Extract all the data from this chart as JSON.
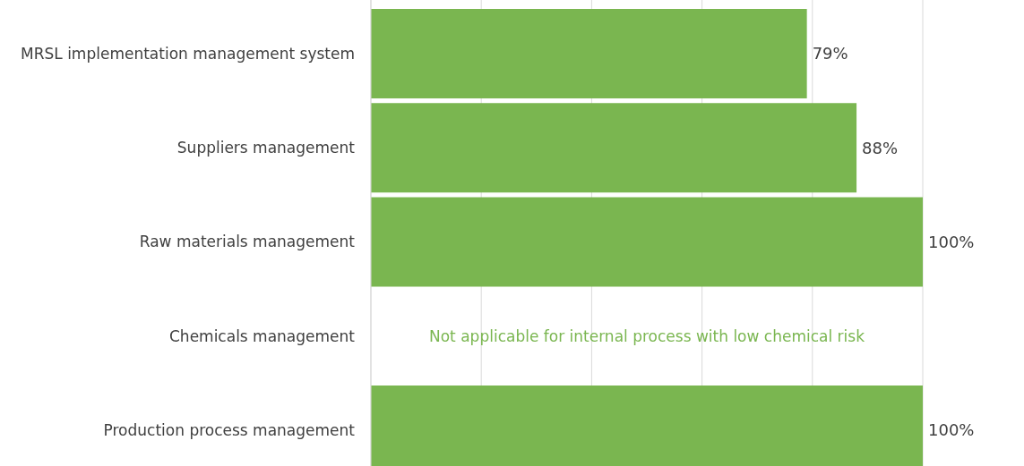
{
  "chart_data": {
    "type": "bar",
    "orientation": "horizontal",
    "categories": [
      "MRSL implementation management system",
      "Suppliers management",
      "Raw materials management",
      "Chemicals management",
      "Production process management"
    ],
    "values": [
      79,
      88,
      100,
      null,
      100
    ],
    "value_labels": [
      "79%",
      "88%",
      "100%",
      null,
      "100%"
    ],
    "color": "#7ab650",
    "xlim": [
      0,
      100
    ],
    "xticks": [
      {
        "value": 0,
        "label": null
      },
      {
        "value": 20,
        "label": null
      },
      {
        "value": 40,
        "label": null
      },
      {
        "value": 60,
        "label": null
      },
      {
        "value": 80,
        "label": null
      },
      {
        "value": 100,
        "label": null
      }
    ],
    "tick_labels": "y",
    "grid": "x",
    "annotations": [
      "Not applicable for internal process with low chemical risk"
    ]
  }
}
